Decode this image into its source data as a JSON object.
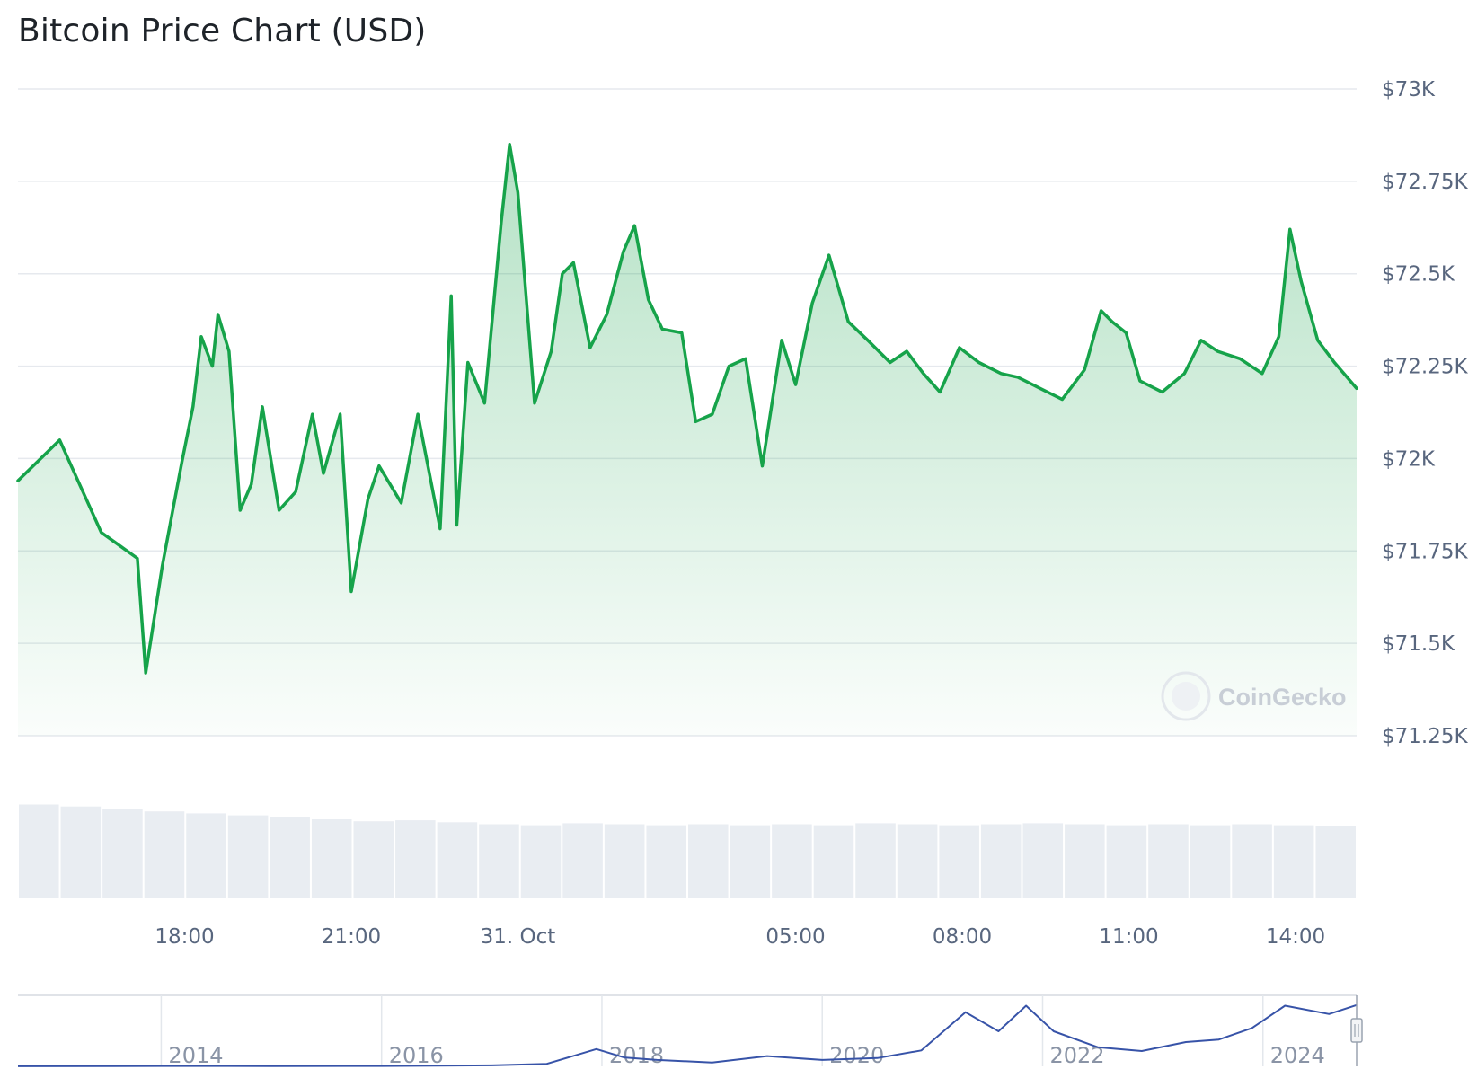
{
  "title": "Bitcoin Price Chart (USD)",
  "watermark": "CoinGecko",
  "colors": {
    "line": "#16a34a",
    "area_top": "#16a34a",
    "grid": "#e6e9ee",
    "volume": "#e9edf2",
    "navigator_line": "#3753a8"
  },
  "chart_data": [
    {
      "type": "line",
      "title": "Bitcoin Price Chart (USD)",
      "ylim": [
        71250,
        73000
      ],
      "yticks": [
        71250,
        71500,
        71750,
        72000,
        72250,
        72500,
        72750,
        73000
      ],
      "ytick_labels": [
        "$71.25K",
        "$71.5K",
        "$71.75K",
        "$72K",
        "$72.25K",
        "$72.5K",
        "$72.75K",
        "$73K"
      ],
      "xlim": [
        0,
        24.1
      ],
      "x_unit": "hours since start of window (window ends ~14:55 on 31 Oct)",
      "xticks": [
        3,
        6,
        9,
        14,
        17,
        20,
        23
      ],
      "xtick_labels": [
        "18:00",
        "21:00",
        "31. Oct",
        "05:00",
        "08:00",
        "11:00",
        "14:00"
      ],
      "area": true,
      "series": [
        {
          "x": [
            0,
            0.75,
            1.5,
            2.15,
            2.3,
            2.6,
            2.95,
            3.15,
            3.3,
            3.5,
            3.6,
            3.8,
            4.0,
            4.2,
            4.4,
            4.7,
            5.0,
            5.3,
            5.5,
            5.8,
            6.0,
            6.3,
            6.5,
            6.9,
            7.2,
            7.6,
            7.8,
            7.9,
            8.1,
            8.4,
            8.7,
            8.85,
            9.0,
            9.3,
            9.6,
            9.8,
            10.0,
            10.3,
            10.6,
            10.9,
            11.1,
            11.35,
            11.6,
            11.95,
            12.2,
            12.5,
            12.8,
            13.1,
            13.4,
            13.75,
            14.0,
            14.3,
            14.6,
            14.95,
            15.3,
            15.7,
            16.0,
            16.3,
            16.6,
            16.95,
            17.3,
            17.7,
            18.0,
            18.4,
            18.8,
            19.2,
            19.5,
            19.7,
            19.95,
            20.2,
            20.6,
            21.0,
            21.3,
            21.6,
            22.0,
            22.4,
            22.7,
            22.9,
            23.1,
            23.4,
            23.7,
            24.1
          ],
          "y": [
            71940,
            72050,
            71800,
            71730,
            71420,
            71710,
            71990,
            72140,
            72330,
            72250,
            72390,
            72290,
            71860,
            71930,
            72140,
            71860,
            71910,
            72120,
            71960,
            72120,
            71640,
            71890,
            71980,
            71880,
            72120,
            71810,
            72440,
            71820,
            72260,
            72150,
            72640,
            72850,
            72720,
            72150,
            72290,
            72500,
            72530,
            72300,
            72390,
            72560,
            72630,
            72430,
            72350,
            72340,
            72100,
            72120,
            72250,
            72270,
            71980,
            72320,
            72200,
            72420,
            72550,
            72370,
            72320,
            72260,
            72290,
            72230,
            72180,
            72300,
            72260,
            72230,
            72220,
            72190,
            72160,
            72240,
            72400,
            72370,
            72340,
            72210,
            72180,
            72230,
            72320,
            72290,
            72270,
            72230,
            72330,
            72620,
            72480,
            72320,
            72260,
            72190
          ]
        }
      ]
    },
    {
      "type": "bar",
      "title": "",
      "note": "volume bars under price chart (no axis labels shown)",
      "values": [
        0.95,
        0.93,
        0.9,
        0.88,
        0.86,
        0.84,
        0.82,
        0.8,
        0.78,
        0.79,
        0.77,
        0.75,
        0.74,
        0.76,
        0.75,
        0.74,
        0.75,
        0.74,
        0.75,
        0.74,
        0.76,
        0.75,
        0.74,
        0.75,
        0.76,
        0.75,
        0.74,
        0.75,
        0.74,
        0.75,
        0.74,
        0.73
      ]
    },
    {
      "type": "line",
      "title": "",
      "note": "navigator overview (full history)",
      "xlim": [
        2012.7,
        2024.85
      ],
      "xticks": [
        2014,
        2016,
        2018,
        2020,
        2022,
        2024
      ],
      "xtick_labels": [
        "2014",
        "2016",
        "2018",
        "2020",
        "2022",
        "2024"
      ],
      "series": [
        {
          "x": [
            2012.7,
            2014,
            2015,
            2016,
            2017,
            2017.5,
            2017.95,
            2018.2,
            2018.5,
            2019.0,
            2019.5,
            2020.0,
            2020.5,
            2020.9,
            2021.3,
            2021.6,
            2021.85,
            2022.1,
            2022.5,
            2022.9,
            2023.3,
            2023.6,
            2023.9,
            2024.2,
            2024.6,
            2024.85
          ],
          "y": [
            0.001,
            0.006,
            0.004,
            0.006,
            0.015,
            0.04,
            0.27,
            0.14,
            0.1,
            0.06,
            0.16,
            0.1,
            0.13,
            0.25,
            0.85,
            0.55,
            0.95,
            0.55,
            0.3,
            0.24,
            0.38,
            0.42,
            0.6,
            0.95,
            0.82,
            0.96
          ]
        }
      ]
    }
  ]
}
